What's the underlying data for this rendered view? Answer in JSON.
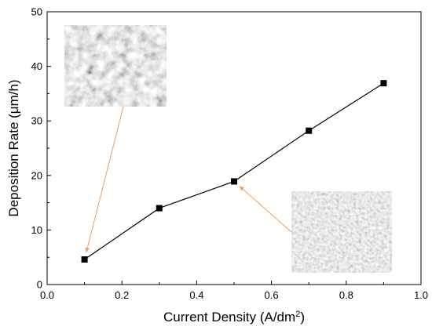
{
  "chart_data": {
    "type": "line",
    "xlabel": "Current Density (A/dm",
    "xlabel_superscript": "2",
    "xlabel_suffix": ")",
    "ylabel": "Deposition Rate (μm/h)",
    "xlim": [
      0.0,
      1.0
    ],
    "ylim": [
      0,
      50
    ],
    "xticks": [
      0.0,
      0.2,
      0.4,
      0.6,
      0.8,
      1.0
    ],
    "xtick_labels": [
      "0.0",
      "0.2",
      "0.4",
      "0.6",
      "0.8",
      "1.0"
    ],
    "yticks": [
      0,
      10,
      20,
      30,
      40,
      50
    ],
    "ytick_labels": [
      "0",
      "10",
      "20",
      "30",
      "40",
      "50"
    ],
    "grid": false,
    "series": [
      {
        "x": [
          0.1,
          0.3,
          0.5,
          0.7,
          0.9
        ],
        "y": [
          4.6,
          14.0,
          18.9,
          28.2,
          36.9
        ],
        "marker": "square",
        "color": "#000000"
      }
    ],
    "annotations": [
      {
        "kind": "sem-micrograph",
        "texture": "coarse",
        "points_to_x": 0.1,
        "points_to_y": 4.6,
        "arrow_color": "#f0a060"
      },
      {
        "kind": "sem-micrograph",
        "texture": "fine",
        "points_to_x": 0.5,
        "points_to_y": 18.9,
        "arrow_color": "#f0a060"
      }
    ]
  }
}
